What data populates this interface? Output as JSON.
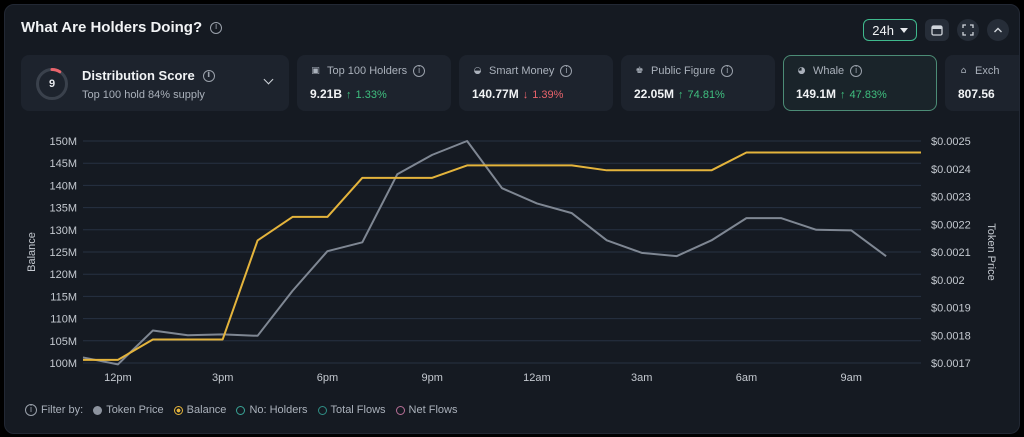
{
  "header": {
    "title": "What Are Holders Doing?"
  },
  "controls": {
    "range": "24h"
  },
  "score": {
    "value": "9",
    "fraction": 0.09,
    "title": "Distribution Score",
    "subtitle": "Top 100 hold 84% supply"
  },
  "cards": [
    {
      "label": "Top 100 Holders",
      "value": "9.21B",
      "change": "1.33%",
      "dir": "up",
      "icon": "wallet-icon"
    },
    {
      "label": "Smart Money",
      "value": "140.77M",
      "change": "1.39%",
      "dir": "down",
      "icon": "smart-money-icon"
    },
    {
      "label": "Public Figure",
      "value": "22.05M",
      "change": "74.81%",
      "dir": "up",
      "icon": "public-figure-icon"
    },
    {
      "label": "Whale",
      "value": "149.1M",
      "change": "47.83%",
      "dir": "up",
      "icon": "whale-icon"
    },
    {
      "label": "Exch",
      "value": "807.56",
      "change": "",
      "dir": "",
      "icon": "exchange-icon"
    }
  ],
  "chart_data": {
    "type": "line",
    "xlabel": "",
    "ylabel": "Balance",
    "y2label": "Token Price",
    "x_ticks": [
      "12pm",
      "3pm",
      "6pm",
      "9pm",
      "12am",
      "3am",
      "6am",
      "9am"
    ],
    "y_ticks": [
      "100M",
      "105M",
      "110M",
      "115M",
      "120M",
      "125M",
      "130M",
      "135M",
      "140M",
      "145M",
      "150M"
    ],
    "y2_ticks": [
      "$0.0017",
      "$0.0018",
      "$0.0019",
      "$0.002",
      "$0.0021",
      "$0.0022",
      "$0.0023",
      "$0.0024",
      "$0.0025"
    ],
    "ylim": [
      100,
      150
    ],
    "y2lim": [
      0.0017,
      0.0025
    ],
    "x_hours": [
      11,
      12,
      13,
      14,
      15,
      16,
      17,
      18,
      19,
      20,
      21,
      22,
      23,
      24,
      25,
      26,
      27,
      28,
      29,
      30,
      31,
      32,
      33,
      34
    ],
    "series": [
      {
        "name": "Balance",
        "axis": "left",
        "color": "#e4b43c",
        "values": [
          100.7,
          100.7,
          105.3,
          105.3,
          105.3,
          127.6,
          132.9,
          132.9,
          141.7,
          141.7,
          141.7,
          144.5,
          144.5,
          144.5,
          144.5,
          143.4,
          143.4,
          143.4,
          143.4,
          147.4,
          147.4,
          147.4,
          147.4,
          147.4
        ]
      },
      {
        "name": "Token Price",
        "axis": "right",
        "color": "#7f8793",
        "values": [
          0.00172,
          0.001695,
          0.001817,
          0.0018,
          0.001803,
          0.001798,
          0.00196,
          0.002103,
          0.002135,
          0.00238,
          0.00245,
          0.0025,
          0.00233,
          0.002275,
          0.00224,
          0.002142,
          0.002097,
          0.002085,
          0.002142,
          0.002222,
          0.002222,
          0.00218,
          0.002178,
          0.002085
        ]
      }
    ],
    "grid": true,
    "legend_position": "bottom-left"
  },
  "legend": {
    "prefix": "Filter by:",
    "items": [
      "Token Price",
      "Balance",
      "No: Holders",
      "Total Flows",
      "Net Flows"
    ]
  }
}
